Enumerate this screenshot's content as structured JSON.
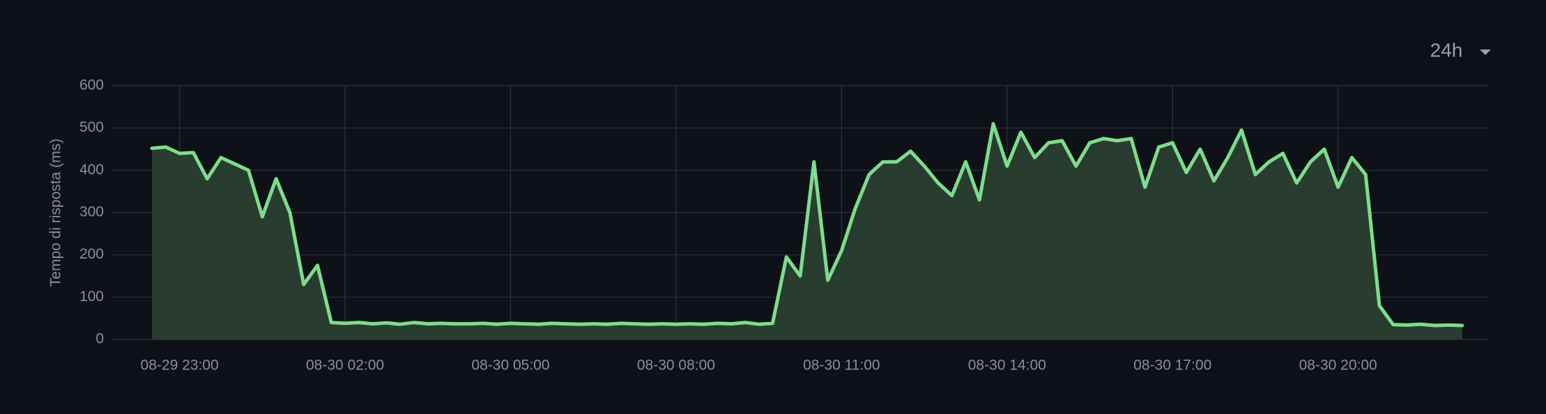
{
  "range_selector": "24h",
  "chart_data": {
    "type": "area",
    "y_label": "Tempo di risposta (ms)",
    "color": "#7fdc8c",
    "fill_color": "#283d30",
    "grid": true,
    "ylim": [
      0,
      600
    ],
    "yticks": [
      0,
      100,
      200,
      300,
      400,
      500,
      600
    ],
    "xlim": [
      "08-29 21:46",
      "08-30 22:44"
    ],
    "xticks": [
      "08-29 23:00",
      "08-30 02:00",
      "08-30 05:00",
      "08-30 08:00",
      "08-30 11:00",
      "08-30 14:00",
      "08-30 17:00",
      "08-30 20:00"
    ],
    "x": [
      "08-29 22:30",
      "08-29 22:45",
      "08-29 23:00",
      "08-29 23:15",
      "08-29 23:30",
      "08-29 23:45",
      "08-30 00:00",
      "08-30 00:15",
      "08-30 00:30",
      "08-30 00:45",
      "08-30 01:00",
      "08-30 01:15",
      "08-30 01:30",
      "08-30 01:45",
      "08-30 02:00",
      "08-30 02:15",
      "08-30 02:30",
      "08-30 02:45",
      "08-30 03:00",
      "08-30 03:15",
      "08-30 03:30",
      "08-30 03:45",
      "08-30 04:00",
      "08-30 04:15",
      "08-30 04:30",
      "08-30 04:45",
      "08-30 05:00",
      "08-30 05:15",
      "08-30 05:30",
      "08-30 05:45",
      "08-30 06:00",
      "08-30 06:15",
      "08-30 06:30",
      "08-30 06:45",
      "08-30 07:00",
      "08-30 07:15",
      "08-30 07:30",
      "08-30 07:45",
      "08-30 08:00",
      "08-30 08:15",
      "08-30 08:30",
      "08-30 08:45",
      "08-30 09:00",
      "08-30 09:15",
      "08-30 09:30",
      "08-30 09:45",
      "08-30 10:00",
      "08-30 10:15",
      "08-30 10:30",
      "08-30 10:45",
      "08-30 11:00",
      "08-30 11:15",
      "08-30 11:30",
      "08-30 11:45",
      "08-30 12:00",
      "08-30 12:15",
      "08-30 12:30",
      "08-30 12:45",
      "08-30 13:00",
      "08-30 13:15",
      "08-30 13:30",
      "08-30 13:45",
      "08-30 14:00",
      "08-30 14:15",
      "08-30 14:30",
      "08-30 14:45",
      "08-30 15:00",
      "08-30 15:15",
      "08-30 15:30",
      "08-30 15:45",
      "08-30 16:00",
      "08-30 16:15",
      "08-30 16:30",
      "08-30 16:45",
      "08-30 17:00",
      "08-30 17:15",
      "08-30 17:30",
      "08-30 17:45",
      "08-30 18:00",
      "08-30 18:15",
      "08-30 18:30",
      "08-30 18:45",
      "08-30 19:00",
      "08-30 19:15",
      "08-30 19:30",
      "08-30 19:45",
      "08-30 20:00",
      "08-30 20:15",
      "08-30 20:30",
      "08-30 20:45",
      "08-30 21:00",
      "08-30 21:15",
      "08-30 21:30",
      "08-30 21:45",
      "08-30 22:00",
      "08-30 22:15"
    ],
    "values": [
      452,
      455,
      440,
      442,
      380,
      430,
      415,
      400,
      290,
      380,
      300,
      130,
      175,
      40,
      38,
      40,
      37,
      39,
      36,
      40,
      37,
      38,
      37,
      37,
      38,
      36,
      38,
      37,
      36,
      38,
      37,
      36,
      37,
      36,
      38,
      37,
      36,
      37,
      36,
      37,
      36,
      38,
      37,
      40,
      36,
      38,
      195,
      150,
      420,
      140,
      210,
      310,
      390,
      420,
      420,
      445,
      410,
      370,
      340,
      420,
      330,
      510,
      410,
      490,
      430,
      465,
      470,
      410,
      465,
      475,
      470,
      475,
      360,
      455,
      465,
      395,
      450,
      375,
      430,
      495,
      390,
      420,
      440,
      370,
      420,
      450,
      360,
      430,
      390,
      80,
      35,
      34,
      36,
      33,
      34,
      33
    ]
  }
}
